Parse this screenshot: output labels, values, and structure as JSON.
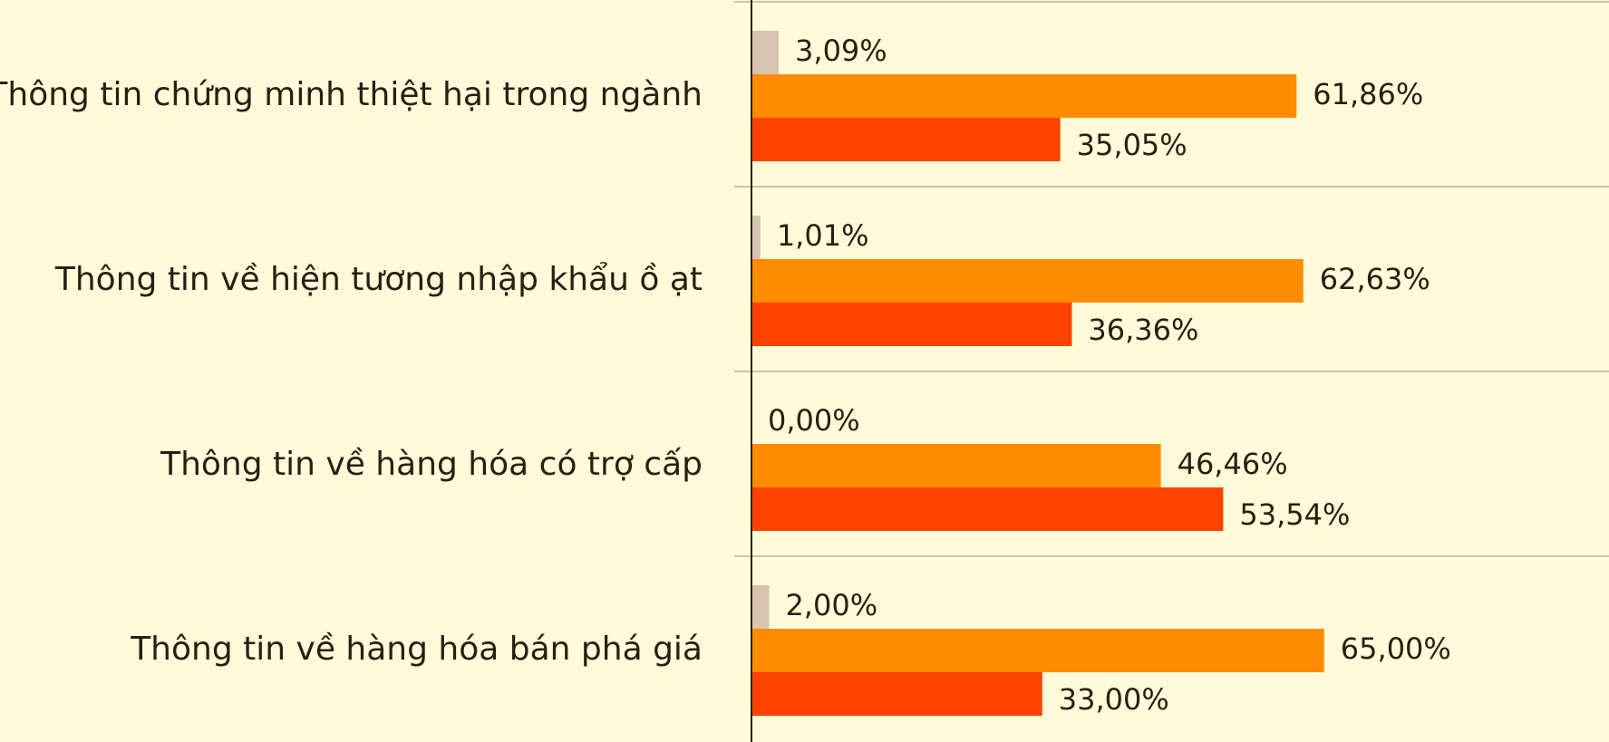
{
  "chart_data": {
    "type": "barh",
    "categories": [
      "Thông tin chứng minh thiệt hại trong ngành",
      "Thông tin về hiện tương nhập khẩu ồ ạt",
      "Thông tin về hàng hóa có trợ cấp",
      "Thông tin về hàng hóa bán phá giá"
    ],
    "series": [
      {
        "color": "#d8c3b0",
        "values": [
          3.09,
          1.01,
          0,
          2
        ],
        "value_labels": [
          "3,09%",
          "1,01%",
          "0,00%",
          "2,00%"
        ]
      },
      {
        "color": "#ff8c00",
        "values": [
          61.86,
          62.63,
          46.46,
          65
        ],
        "value_labels": [
          "61,86%",
          "62,63%",
          "46,46%",
          "65,00%"
        ]
      },
      {
        "color": "#ff4200",
        "values": [
          35.05,
          36.36,
          53.54,
          33
        ],
        "value_labels": [
          "35,05%",
          "36,36%",
          "53,54%",
          "33,00%"
        ]
      }
    ]
  }
}
